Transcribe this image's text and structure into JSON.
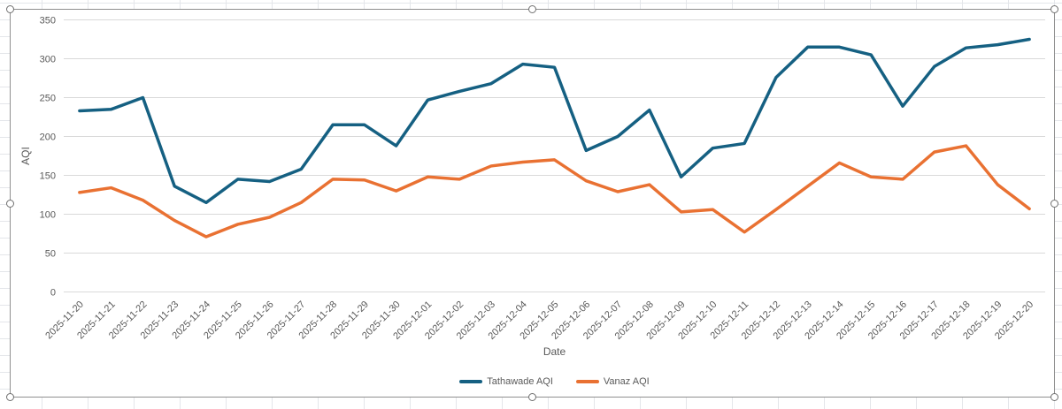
{
  "app": {
    "context": "spreadsheet with selected embedded chart"
  },
  "chart_data": {
    "type": "line",
    "title": "",
    "xlabel": "Date",
    "ylabel": "AQI",
    "ylim": [
      0,
      350
    ],
    "yticks": [
      0,
      50,
      100,
      150,
      200,
      250,
      300,
      350
    ],
    "grid": "horizontal",
    "legend_position": "bottom",
    "categories": [
      "2025-11-20",
      "2025-11-21",
      "2025-11-22",
      "2025-11-23",
      "2025-11-24",
      "2025-11-25",
      "2025-11-26",
      "2025-11-27",
      "2025-11-28",
      "2025-11-29",
      "2025-11-30",
      "2025-12-01",
      "2025-12-02",
      "2025-12-03",
      "2025-12-04",
      "2025-12-05",
      "2025-12-06",
      "2025-12-07",
      "2025-12-08",
      "2025-12-09",
      "2025-12-10",
      "2025-12-11",
      "2025-12-12",
      "2025-12-13",
      "2025-12-14",
      "2025-12-15",
      "2025-12-16",
      "2025-12-17",
      "2025-12-18",
      "2025-12-19",
      "2025-12-20"
    ],
    "series": [
      {
        "name": "Tathawade AQI",
        "color": "#156082",
        "values": [
          233,
          235,
          250,
          136,
          115,
          145,
          142,
          158,
          215,
          215,
          188,
          247,
          258,
          268,
          293,
          289,
          182,
          200,
          234,
          148,
          185,
          191,
          276,
          315,
          315,
          305,
          239,
          290,
          314,
          318,
          325
        ]
      },
      {
        "name": "Vanaz AQI",
        "color": "#E97132",
        "values": [
          128,
          134,
          118,
          92,
          71,
          87,
          96,
          115,
          145,
          144,
          130,
          148,
          145,
          162,
          167,
          170,
          143,
          129,
          138,
          103,
          106,
          77,
          106,
          136,
          166,
          148,
          145,
          180,
          188,
          138,
          107
        ]
      }
    ]
  },
  "colors": {
    "series1": "#156082",
    "series2": "#E97132",
    "gridline": "#D9D9D9",
    "text": "#595959",
    "sheet_gridline": "#E4E6EA",
    "frame_border": "#8F8F8F"
  }
}
